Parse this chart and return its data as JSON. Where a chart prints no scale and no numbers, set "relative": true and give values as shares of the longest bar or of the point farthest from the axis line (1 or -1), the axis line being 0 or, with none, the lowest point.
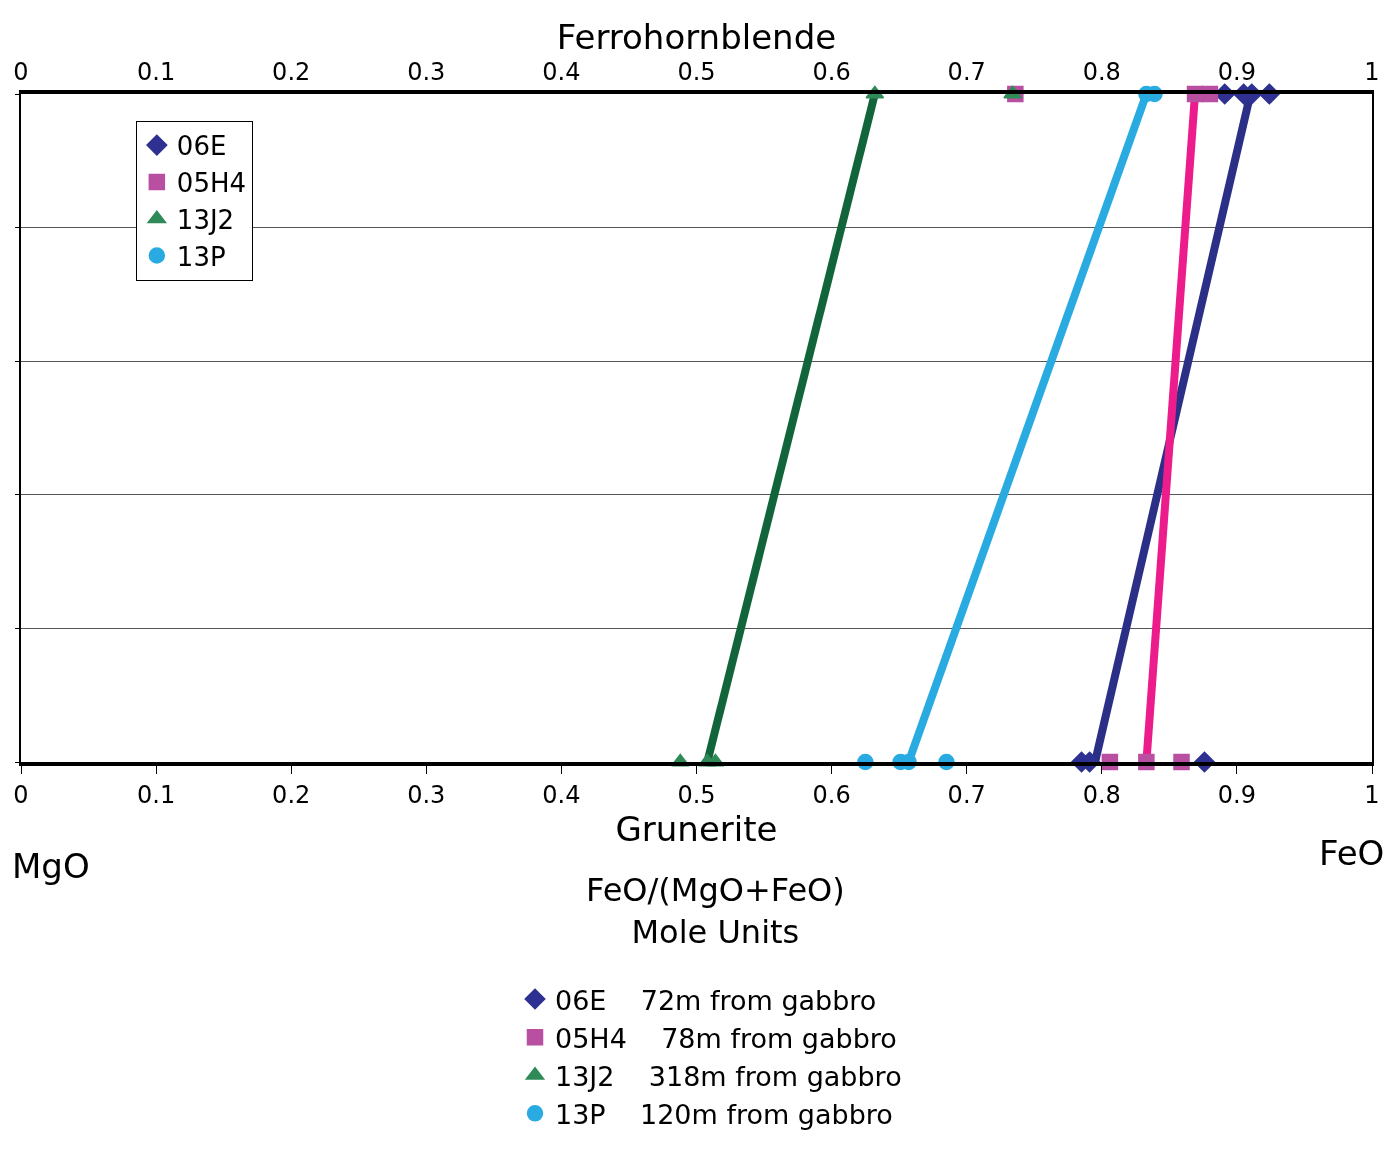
{
  "chart_data": {
    "type": "scatter",
    "relative": true,
    "xlabel": "Grunerite",
    "x2label": "Ferrohornblende",
    "xlim": [
      0,
      1
    ],
    "xticks": [
      0,
      0.1,
      0.2,
      0.3,
      0.4,
      0.5,
      0.6,
      0.7,
      0.8,
      0.9,
      1
    ],
    "x2lim": [
      0,
      1
    ],
    "x2ticks": [
      0,
      0.1,
      0.2,
      0.3,
      0.4,
      0.5,
      0.6,
      0.7,
      0.8,
      0.9,
      1
    ],
    "grid": "y",
    "legend": "top left",
    "series": [
      {
        "name": "06E",
        "marker": "diamond",
        "color": "#2e3192",
        "x": [
          0.785,
          0.791,
          0.876,
          0.891,
          0.905,
          0.911,
          0.924
        ],
        "values": [
          0,
          0,
          0,
          1,
          1,
          1,
          1
        ]
      },
      {
        "name": "05H4",
        "marker": "square",
        "color": "#b94fa0",
        "x": [
          0.806,
          0.833,
          0.859,
          0.736,
          0.869,
          0.88
        ],
        "values": [
          0,
          0,
          0,
          1,
          1,
          1
        ]
      },
      {
        "name": "13J2",
        "marker": "triangle",
        "color": "#2e8b57",
        "x": [
          0.488,
          0.508,
          0.514,
          0.632,
          0.734
        ],
        "values": [
          0,
          0,
          0,
          1,
          1
        ]
      },
      {
        "name": "13P",
        "marker": "circle",
        "color": "#29abe2",
        "x": [
          0.625,
          0.651,
          0.657,
          0.685,
          0.833,
          0.839
        ],
        "values": [
          0,
          0,
          0,
          0,
          1,
          1
        ]
      },
      {
        "type": "line",
        "color": "#2b2f86",
        "x": [
          0.795,
          0.91
        ],
        "values": [
          0,
          1
        ]
      },
      {
        "type": "line",
        "color": "#ec1c8c",
        "x": [
          0.833,
          0.869
        ],
        "values": [
          0,
          1
        ]
      },
      {
        "type": "line",
        "color": "#12643a",
        "x": [
          0.508,
          0.632
        ],
        "values": [
          0,
          1
        ]
      },
      {
        "type": "line",
        "color": "#29abe2",
        "x": [
          0.657,
          0.833
        ],
        "values": [
          0,
          1
        ]
      }
    ],
    "annotations": [
      "MgO",
      "FeO",
      "FeO/(MgO+FeO)\nMole Units",
      "72m from gabbro",
      "78m from gabbro",
      "318m from gabbro",
      "120m from gabbro"
    ]
  }
}
